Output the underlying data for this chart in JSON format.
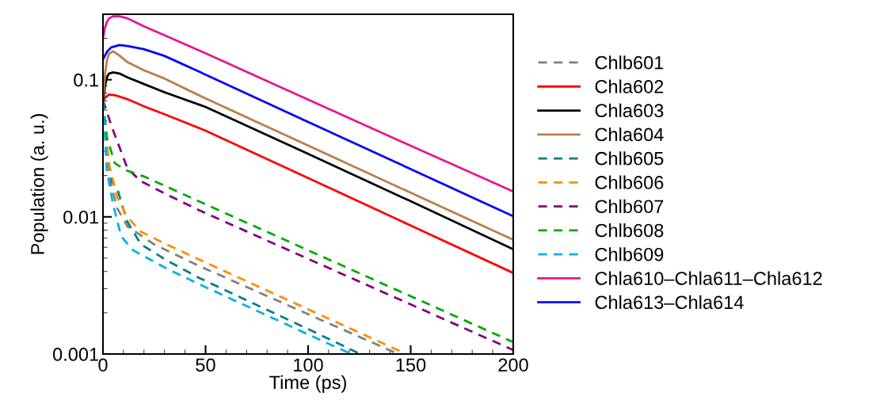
{
  "chart_data": {
    "type": "line",
    "xlabel": "Time (ps)",
    "ylabel": "Population (a. u.)",
    "log": "y",
    "xlim": [
      0,
      200
    ],
    "xticks": [
      0,
      50,
      100,
      150,
      200
    ],
    "ylim": [
      0.001,
      0.3
    ],
    "yticks": [
      0.001,
      0.01,
      0.1
    ],
    "grid": false,
    "legend": "right",
    "marker": "none",
    "series": [
      {
        "name": "Chlb601",
        "color": "#808080",
        "line_style": "dashed",
        "x": [
          0,
          2,
          4,
          6.9,
          12,
          25,
          46.7,
          100,
          144
        ],
        "values": [
          0.07,
          0.03,
          0.017,
          0.0116,
          0.0085,
          0.0063,
          0.0044,
          0.00195,
          0.001
        ]
      },
      {
        "name": "Chla602",
        "color": "#ff0000",
        "line_style": "solid",
        "x": [
          0,
          1,
          3,
          6,
          12,
          20,
          30,
          50,
          100,
          150,
          200
        ],
        "values": [
          0.068,
          0.074,
          0.078,
          0.077,
          0.072,
          0.064,
          0.056,
          0.0425,
          0.0192,
          0.00865,
          0.0039
        ]
      },
      {
        "name": "Chla603",
        "color": "#000000",
        "line_style": "solid",
        "x": [
          0,
          1,
          2,
          3,
          5,
          8,
          12,
          20,
          30,
          50,
          100,
          150,
          200
        ],
        "values": [
          0.065,
          0.09,
          0.105,
          0.111,
          0.113,
          0.111,
          0.104,
          0.093,
          0.081,
          0.0633,
          0.0288,
          0.013,
          0.0058
        ]
      },
      {
        "name": "Chla604",
        "color": "#b87f4a",
        "line_style": "solid",
        "x": [
          0,
          1,
          2,
          3,
          5,
          8,
          12,
          20,
          30,
          50,
          100,
          150,
          200
        ],
        "values": [
          0.07,
          0.11,
          0.14,
          0.155,
          0.161,
          0.15,
          0.134,
          0.117,
          0.102,
          0.073,
          0.0331,
          0.015,
          0.0068
        ]
      },
      {
        "name": "Chlb605",
        "color": "#008080",
        "line_style": "dashed",
        "x": [
          0,
          2,
          4.2,
          6.9,
          11.6,
          18.5,
          31,
          46.7,
          100,
          125.5
        ],
        "values": [
          0.07,
          0.03,
          0.0182,
          0.0162,
          0.0094,
          0.0063,
          0.00483,
          0.0036,
          0.00152,
          0.001
        ]
      },
      {
        "name": "Chlb606",
        "color": "#ff8c00",
        "line_style": "dashed",
        "x": [
          0,
          1.5,
          3.1,
          6.9,
          11.6,
          18.5,
          31,
          46.7,
          100,
          147.9
        ],
        "values": [
          0.07,
          0.04,
          0.0237,
          0.0139,
          0.0101,
          0.00778,
          0.0063,
          0.0049,
          0.00212,
          0.001
        ]
      },
      {
        "name": "Chlb607",
        "color": "#800080",
        "line_style": "dashed",
        "x": [
          0,
          4.2,
          8.1,
          12,
          18.5,
          29,
          46.3,
          100,
          150,
          200
        ],
        "values": [
          0.071,
          0.0458,
          0.032,
          0.0224,
          0.0182,
          0.0151,
          0.01127,
          0.00494,
          0.0023,
          0.00107
        ]
      },
      {
        "name": "Chlb608",
        "color": "#00aa00",
        "line_style": "dashed",
        "x": [
          0,
          1.9,
          5.8,
          10.8,
          20,
          30,
          46.7,
          100,
          150,
          200
        ],
        "values": [
          0.07,
          0.038,
          0.0246,
          0.022,
          0.0197,
          0.0169,
          0.013,
          0.00571,
          0.00264,
          0.00122
        ]
      },
      {
        "name": "Chlb609",
        "color": "#00b0e8",
        "line_style": "dashed",
        "x": [
          0,
          1.9,
          5,
          8.9,
          14.7,
          31,
          46.7,
          100,
          121
        ],
        "values": [
          0.07,
          0.0216,
          0.0122,
          0.0072,
          0.0057,
          0.0042,
          0.00324,
          0.00139,
          0.001
        ]
      },
      {
        "name": "Chla610–Chla611–Chla612",
        "color": "#e8168c",
        "line_style": "solid",
        "x": [
          0,
          1,
          2,
          3,
          5,
          8,
          12,
          20,
          30,
          50,
          100,
          150,
          200
        ],
        "values": [
          0.2,
          0.24,
          0.265,
          0.28,
          0.29,
          0.29,
          0.28,
          0.245,
          0.211,
          0.156,
          0.0716,
          0.033,
          0.0153
        ]
      },
      {
        "name": "Chla613–Chla614",
        "color": "#0000ff",
        "line_style": "solid",
        "x": [
          0,
          2,
          4,
          8,
          12,
          20,
          30,
          50,
          100,
          150,
          200
        ],
        "values": [
          0.141,
          0.16,
          0.172,
          0.179,
          0.176,
          0.167,
          0.149,
          0.109,
          0.0492,
          0.0223,
          0.0101
        ]
      }
    ]
  }
}
